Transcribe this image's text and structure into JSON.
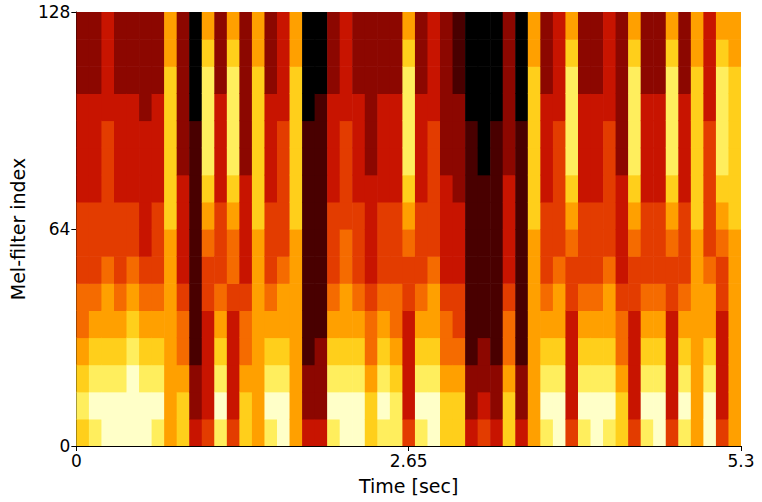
{
  "chart_data": {
    "type": "heatmap",
    "x_label": "Time [sec]",
    "y_label": "Mel-filter index",
    "xlim": [
      0,
      5.3
    ],
    "xticks": [
      0,
      2.65,
      5.3
    ],
    "ylim": [
      0,
      128
    ],
    "yticks": [
      0,
      64,
      128
    ],
    "zlim": [
      0,
      9
    ],
    "time_bins": [
      0,
      0.1,
      0.2,
      0.3,
      0.4,
      0.5,
      0.6,
      0.7,
      0.8,
      0.9,
      1.0,
      1.1,
      1.2,
      1.3,
      1.4,
      1.5,
      1.6,
      1.7,
      1.8,
      1.9,
      2.0,
      2.1,
      2.2,
      2.3,
      2.4,
      2.5,
      2.6,
      2.7,
      2.8,
      2.9,
      3.0,
      3.1,
      3.2,
      3.3,
      3.4,
      3.5,
      3.6,
      3.7,
      3.8,
      3.9,
      4.0,
      4.1,
      4.2,
      4.3,
      4.4,
      4.5,
      4.6,
      4.7,
      4.8,
      4.9,
      5.0,
      5.1,
      5.2,
      5.3
    ],
    "mel_bins": [
      0,
      8,
      16,
      24,
      32,
      40,
      48,
      56,
      64,
      72,
      80,
      88,
      96,
      104,
      112,
      120,
      128
    ],
    "cells": [
      [
        7,
        8,
        7,
        6,
        5,
        5,
        4,
        4,
        4,
        3,
        3,
        3,
        3,
        2,
        2,
        2
      ],
      [
        8,
        9,
        8,
        7,
        6,
        5,
        4,
        4,
        4,
        3,
        3,
        3,
        3,
        2,
        2,
        2
      ],
      [
        9,
        9,
        8,
        7,
        6,
        6,
        5,
        4,
        4,
        4,
        4,
        4,
        3,
        3,
        3,
        3
      ],
      [
        9,
        9,
        8,
        7,
        6,
        5,
        4,
        4,
        4,
        3,
        3,
        3,
        3,
        2,
        2,
        2
      ],
      [
        9,
        9,
        9,
        8,
        7,
        6,
        5,
        4,
        4,
        3,
        3,
        3,
        3,
        2,
        2,
        2
      ],
      [
        9,
        9,
        8,
        7,
        6,
        5,
        4,
        3,
        3,
        3,
        3,
        3,
        2,
        2,
        2,
        2
      ],
      [
        8,
        9,
        8,
        7,
        6,
        5,
        4,
        4,
        4,
        3,
        3,
        3,
        3,
        2,
        2,
        2
      ],
      [
        6,
        6,
        6,
        6,
        6,
        6,
        6,
        6,
        7,
        7,
        7,
        7,
        7,
        7,
        6,
        6
      ],
      [
        7,
        7,
        6,
        5,
        5,
        4,
        3,
        3,
        3,
        3,
        2,
        2,
        2,
        2,
        2,
        2
      ],
      [
        3,
        2,
        2,
        1,
        1,
        1,
        1,
        1,
        1,
        1,
        1,
        1,
        0,
        0,
        0,
        0
      ],
      [
        4,
        3,
        3,
        3,
        3,
        4,
        4,
        5,
        6,
        7,
        8,
        8,
        8,
        8,
        7,
        6
      ],
      [
        8,
        9,
        8,
        7,
        6,
        5,
        4,
        4,
        4,
        3,
        3,
        3,
        3,
        2,
        2,
        2
      ],
      [
        4,
        3,
        3,
        3,
        3,
        4,
        5,
        5,
        6,
        7,
        8,
        8,
        8,
        8,
        7,
        6
      ],
      [
        7,
        7,
        6,
        5,
        5,
        4,
        3,
        3,
        3,
        3,
        2,
        2,
        2,
        2,
        2,
        2
      ],
      [
        6,
        6,
        6,
        6,
        6,
        6,
        6,
        6,
        7,
        7,
        7,
        7,
        7,
        7,
        6,
        6
      ],
      [
        8,
        9,
        8,
        7,
        6,
        5,
        4,
        4,
        4,
        3,
        3,
        3,
        3,
        2,
        2,
        2
      ],
      [
        9,
        9,
        8,
        7,
        6,
        6,
        5,
        4,
        4,
        4,
        4,
        4,
        3,
        3,
        3,
        3
      ],
      [
        6,
        6,
        6,
        6,
        6,
        6,
        6,
        6,
        7,
        7,
        7,
        7,
        7,
        7,
        6,
        6
      ],
      [
        3,
        2,
        2,
        1,
        1,
        1,
        1,
        1,
        1,
        1,
        1,
        1,
        0,
        0,
        0,
        0
      ],
      [
        3,
        2,
        2,
        2,
        1,
        1,
        1,
        1,
        1,
        1,
        1,
        1,
        1,
        0,
        0,
        0
      ],
      [
        8,
        9,
        8,
        7,
        6,
        5,
        4,
        4,
        4,
        3,
        3,
        3,
        3,
        2,
        2,
        2
      ],
      [
        9,
        9,
        8,
        7,
        6,
        6,
        5,
        5,
        4,
        4,
        4,
        4,
        3,
        3,
        3,
        3
      ],
      [
        9,
        9,
        8,
        7,
        6,
        5,
        4,
        4,
        4,
        3,
        3,
        3,
        3,
        2,
        2,
        2
      ],
      [
        7,
        7,
        6,
        5,
        5,
        4,
        3,
        3,
        3,
        3,
        2,
        2,
        2,
        2,
        2,
        2
      ],
      [
        8,
        9,
        8,
        7,
        6,
        5,
        4,
        4,
        4,
        3,
        3,
        3,
        3,
        2,
        2,
        2
      ],
      [
        8,
        8,
        7,
        6,
        5,
        5,
        4,
        4,
        4,
        3,
        3,
        3,
        3,
        2,
        2,
        2
      ],
      [
        4,
        3,
        3,
        3,
        3,
        4,
        4,
        5,
        6,
        7,
        8,
        8,
        8,
        8,
        7,
        6
      ],
      [
        8,
        9,
        8,
        7,
        6,
        5,
        4,
        4,
        4,
        3,
        3,
        3,
        3,
        2,
        2,
        2
      ],
      [
        9,
        9,
        8,
        7,
        6,
        6,
        5,
        4,
        4,
        4,
        4,
        4,
        3,
        3,
        3,
        3
      ],
      [
        7,
        7,
        6,
        5,
        5,
        4,
        3,
        3,
        3,
        3,
        2,
        2,
        2,
        2,
        2,
        2
      ],
      [
        7,
        7,
        6,
        5,
        4,
        4,
        3,
        3,
        3,
        2,
        2,
        2,
        2,
        1,
        1,
        1
      ],
      [
        3,
        2,
        2,
        1,
        1,
        1,
        1,
        1,
        1,
        1,
        1,
        1,
        0,
        0,
        0,
        0
      ],
      [
        4,
        3,
        2,
        2,
        1,
        1,
        1,
        1,
        1,
        1,
        0,
        0,
        0,
        0,
        0,
        0
      ],
      [
        3,
        2,
        2,
        1,
        1,
        1,
        1,
        1,
        1,
        1,
        1,
        1,
        0,
        0,
        0,
        0
      ],
      [
        7,
        7,
        6,
        5,
        5,
        4,
        3,
        3,
        3,
        3,
        2,
        2,
        2,
        2,
        2,
        2
      ],
      [
        3,
        2,
        2,
        1,
        1,
        1,
        1,
        1,
        1,
        1,
        1,
        1,
        0,
        0,
        0,
        0
      ],
      [
        6,
        6,
        6,
        6,
        6,
        6,
        6,
        6,
        7,
        7,
        7,
        7,
        7,
        7,
        6,
        6
      ],
      [
        8,
        9,
        8,
        7,
        6,
        5,
        4,
        4,
        4,
        3,
        3,
        3,
        3,
        2,
        2,
        2
      ],
      [
        9,
        9,
        8,
        7,
        6,
        6,
        5,
        4,
        4,
        4,
        4,
        4,
        3,
        3,
        3,
        3
      ],
      [
        4,
        3,
        3,
        3,
        3,
        4,
        4,
        5,
        6,
        7,
        8,
        8,
        8,
        8,
        7,
        6
      ],
      [
        8,
        9,
        8,
        7,
        6,
        5,
        4,
        4,
        4,
        3,
        3,
        3,
        3,
        2,
        2,
        2
      ],
      [
        9,
        9,
        8,
        7,
        6,
        5,
        4,
        4,
        4,
        3,
        3,
        3,
        3,
        2,
        2,
        2
      ],
      [
        8,
        9,
        8,
        7,
        6,
        6,
        5,
        4,
        4,
        4,
        4,
        4,
        3,
        3,
        3,
        3
      ],
      [
        7,
        7,
        6,
        5,
        5,
        4,
        3,
        3,
        3,
        3,
        2,
        2,
        2,
        2,
        2,
        2
      ],
      [
        4,
        3,
        3,
        3,
        3,
        4,
        4,
        5,
        6,
        7,
        8,
        8,
        8,
        8,
        7,
        6
      ],
      [
        8,
        9,
        8,
        7,
        6,
        5,
        4,
        4,
        4,
        3,
        3,
        3,
        3,
        2,
        2,
        2
      ],
      [
        9,
        9,
        8,
        7,
        6,
        5,
        4,
        4,
        4,
        3,
        3,
        3,
        3,
        2,
        2,
        2
      ],
      [
        4,
        3,
        3,
        3,
        3,
        4,
        4,
        5,
        6,
        7,
        8,
        8,
        8,
        8,
        7,
        6
      ],
      [
        8,
        9,
        8,
        7,
        6,
        5,
        4,
        4,
        4,
        3,
        3,
        3,
        3,
        2,
        2,
        2
      ],
      [
        6,
        6,
        6,
        6,
        6,
        6,
        6,
        6,
        7,
        7,
        7,
        7,
        7,
        7,
        6,
        6
      ],
      [
        9,
        9,
        8,
        7,
        6,
        6,
        5,
        4,
        4,
        4,
        4,
        4,
        3,
        3,
        3,
        3
      ],
      [
        4,
        3,
        3,
        3,
        3,
        4,
        4,
        5,
        6,
        7,
        8,
        8,
        8,
        8,
        7,
        6
      ],
      [
        6,
        6,
        6,
        6,
        6,
        6,
        6,
        6,
        7,
        7,
        7,
        7,
        7,
        7,
        6,
        6
      ]
    ]
  }
}
